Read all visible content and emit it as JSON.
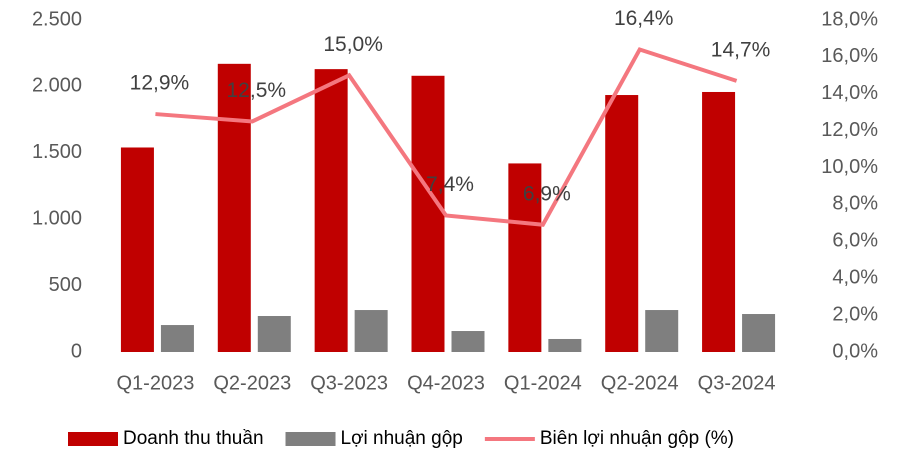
{
  "chart_data": {
    "type": "bar",
    "categories": [
      "Q1-2023",
      "Q2-2023",
      "Q3-2023",
      "Q4-2023",
      "Q1-2024",
      "Q2-2024",
      "Q3-2024"
    ],
    "series": [
      {
        "name": "Doanh thu thuần",
        "type": "bar",
        "color": "#c00000",
        "values": [
          1540,
          2170,
          2130,
          2080,
          1420,
          1935,
          1958
        ]
      },
      {
        "name": "Lợi nhuận gộp",
        "type": "bar",
        "color": "#7f7f7f",
        "values": [
          203,
          271,
          316,
          158,
          98,
          316,
          286
        ]
      },
      {
        "name": "Biên lợi nhuận gộp (%)",
        "type": "line",
        "axis": "y2",
        "color": "#f4777f",
        "values": [
          12.9,
          12.5,
          15.0,
          7.4,
          6.9,
          16.4,
          14.7
        ],
        "value_labels": [
          "12,9%",
          "12,5%",
          "15,0%",
          "7,4%",
          "6,9%",
          "16,4%",
          "14,7%"
        ]
      }
    ],
    "ylim": [
      0,
      2500
    ],
    "yticks": [
      0,
      500,
      {
        "value": 1000,
        "label": "1.000"
      },
      {
        "value": 1500,
        "label": "1.500"
      },
      {
        "value": 2000,
        "label": "2.000"
      },
      {
        "value": 2500,
        "label": "2.500"
      }
    ],
    "y2lim": [
      0,
      18
    ],
    "y2ticks": [
      {
        "value": 0,
        "label": "0,0%"
      },
      {
        "value": 2,
        "label": "2,0%"
      },
      {
        "value": 4,
        "label": "4,0%"
      },
      {
        "value": 6,
        "label": "6,0%"
      },
      {
        "value": 8,
        "label": "8,0%"
      },
      {
        "value": 10,
        "label": "10,0%"
      },
      {
        "value": 12,
        "label": "12,0%"
      },
      {
        "value": 14,
        "label": "14,0%"
      },
      {
        "value": 16,
        "label": "16,0%"
      },
      {
        "value": 18,
        "label": "18,0%"
      }
    ],
    "grid": false,
    "legend": "bottom"
  }
}
